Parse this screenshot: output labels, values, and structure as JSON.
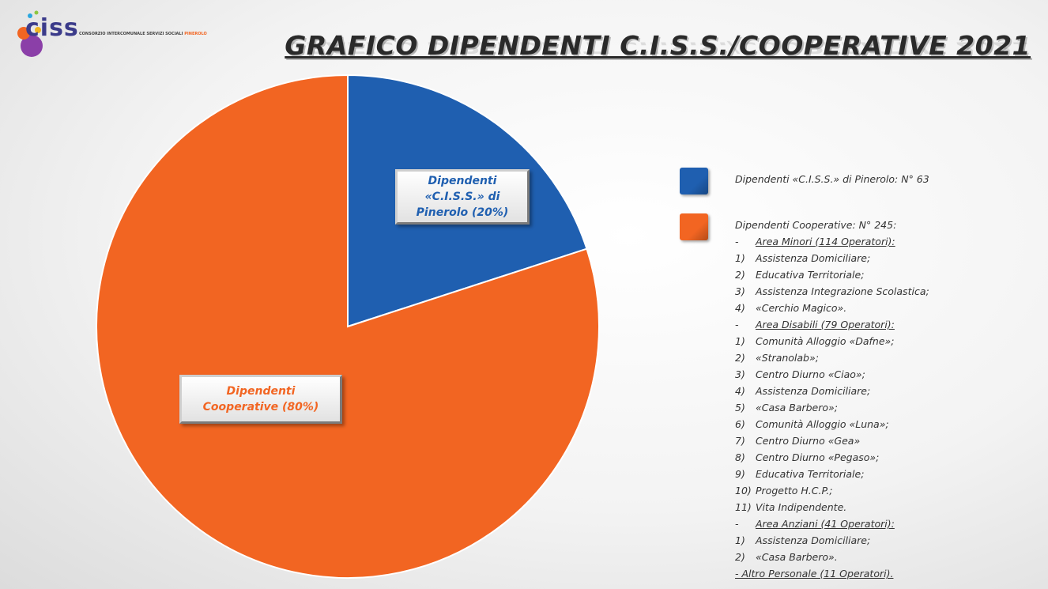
{
  "logo": {
    "name": "ciss",
    "tagline": "CONSORZIO INTERCOMUNALE SERVIZI SOCIALI",
    "tagline_accent": "PINEROLO"
  },
  "chart_data": {
    "type": "pie",
    "title": "GRAFICO DIPENDENTI C.I.S.S./COOPERATIVE 2021",
    "values": [
      20,
      80
    ],
    "value_labels": [
      "Dipendenti «C.I.S.S.» di Pinerolo (20%)",
      "Dipendenti Cooperative (80%)"
    ],
    "colors": [
      "#1f5fb0",
      "#f26522"
    ],
    "legend": [
      {
        "lines": [
          {
            "text": "Dipendenti «C.I.S.S.» di Pinerolo: N° 63"
          }
        ]
      },
      {
        "lines": [
          {
            "text": "Dipendenti Cooperative: N° 245:"
          },
          {
            "marker": "-",
            "text": "Area Minori (114 Operatori):",
            "underline": true
          },
          {
            "marker": "1)",
            "text": "Assistenza Domiciliare;"
          },
          {
            "marker": "2)",
            "text": "Educativa Territoriale;"
          },
          {
            "marker": "3)",
            "text": "Assistenza Integrazione Scolastica;"
          },
          {
            "marker": "4)",
            "text": "«Cerchio Magico»."
          },
          {
            "marker": "-",
            "text": "Area Disabili (79 Operatori):",
            "underline": true
          },
          {
            "marker": "1)",
            "text": "Comunità Alloggio «Dafne»;"
          },
          {
            "marker": "2)",
            "text": "«Stranolab»;"
          },
          {
            "marker": "3)",
            "text": "Centro Diurno «Ciao»;"
          },
          {
            "marker": "4)",
            "text": "Assistenza Domiciliare;"
          },
          {
            "marker": "5)",
            "text": "«Casa Barbero»;"
          },
          {
            "marker": "6)",
            "text": "Comunità Alloggio «Luna»;"
          },
          {
            "marker": "7)",
            "text": "Centro Diurno «Gea»"
          },
          {
            "marker": "8)",
            "text": "Centro Diurno «Pegaso»;"
          },
          {
            "marker": "9)",
            "text": "Educativa Territoriale;"
          },
          {
            "marker": "10)",
            "text": "Progetto H.C.P.;"
          },
          {
            "marker": "11)",
            "text": "Vita Indipendente."
          },
          {
            "marker": "-",
            "text": "Area Anziani (41 Operatori):",
            "underline": true
          },
          {
            "marker": "1)",
            "text": "Assistenza Domiciliare;"
          },
          {
            "marker": "2)",
            "text": "«Casa Barbero»."
          },
          {
            "text": "- Altro Personale (11 Operatori).",
            "underline": true
          }
        ]
      }
    ]
  }
}
